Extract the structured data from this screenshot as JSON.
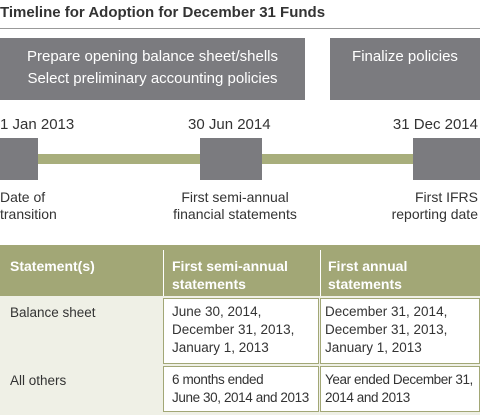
{
  "title": "Timeline for Adoption for December 31 Funds",
  "phases": [
    {
      "lines": [
        "Prepare opening balance sheet/shells",
        "Select preliminary accounting policies"
      ]
    },
    {
      "lines": [
        "Finalize policies"
      ]
    }
  ],
  "milestones": [
    {
      "date": "1 Jan 2013",
      "lines": [
        "Date of",
        "transition"
      ]
    },
    {
      "date": "30 Jun 2014",
      "lines": [
        "First semi-annual",
        "financial statements"
      ]
    },
    {
      "date": "31 Dec 2014",
      "lines": [
        "First IFRS",
        "reporting date"
      ]
    }
  ],
  "table": {
    "header": [
      [
        "Statement(s)"
      ],
      [
        "First semi-annual",
        "statements"
      ],
      [
        "First annual",
        "statements"
      ]
    ],
    "rows": [
      [
        [
          "Balance sheet"
        ],
        [
          "June 30, 2014,",
          "December 31, 2013,",
          "January 1, 2013"
        ],
        [
          "December 31, 2014,",
          "December 31, 2013,",
          "January 1, 2013"
        ]
      ],
      [
        [
          "All others"
        ],
        [
          "6 months ended",
          "June 30, 2014 and 2013"
        ],
        [
          "Year ended December 31,",
          "2014 and 2013"
        ]
      ]
    ]
  }
}
